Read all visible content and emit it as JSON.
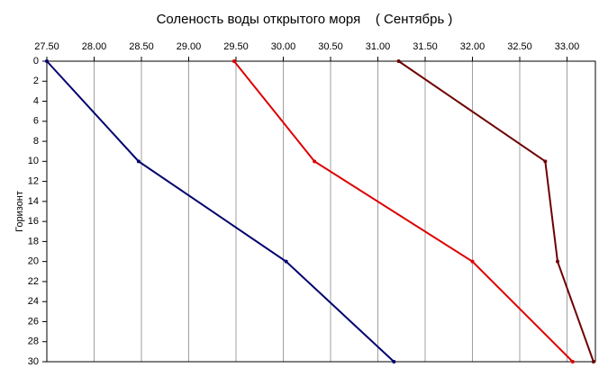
{
  "chart_data": {
    "type": "line",
    "orientation": "horizontal",
    "title": "Соленость воды открытого моря    ( Сентябрь )",
    "y_label": "Горизонт",
    "y": [
      0,
      10,
      20,
      30
    ],
    "series": [
      {
        "color": "#00006e",
        "values": [
          27.5,
          28.47,
          30.03,
          31.17
        ]
      },
      {
        "color": "#dd0000",
        "values": [
          29.48,
          30.33,
          32.0,
          33.06
        ]
      },
      {
        "color": "#6e0000",
        "values": [
          31.22,
          32.77,
          32.9,
          33.28
        ]
      }
    ],
    "xlim": [
      27.5,
      33.3
    ],
    "xticks": [
      {
        "value": 27.5,
        "label": "27.50"
      },
      {
        "value": 28,
        "label": "28.00"
      },
      {
        "value": 28.5,
        "label": "28.50"
      },
      {
        "value": 29,
        "label": "29.00"
      },
      {
        "value": 29.5,
        "label": "29.50"
      },
      {
        "value": 30,
        "label": "30.00"
      },
      {
        "value": 30.5,
        "label": "30.50"
      },
      {
        "value": 31,
        "label": "31.00"
      },
      {
        "value": 31.5,
        "label": "31.50"
      },
      {
        "value": 32,
        "label": "32.00"
      },
      {
        "value": 32.5,
        "label": "32.50"
      },
      {
        "value": 33,
        "label": "33.00"
      }
    ],
    "ylim": [
      0,
      30
    ],
    "yticks": [
      0,
      2,
      4,
      6,
      8,
      10,
      12,
      14,
      16,
      18,
      20,
      22,
      24,
      26,
      28,
      30
    ],
    "y_inverted": true,
    "x_axis_position": "top",
    "grid": "x"
  }
}
